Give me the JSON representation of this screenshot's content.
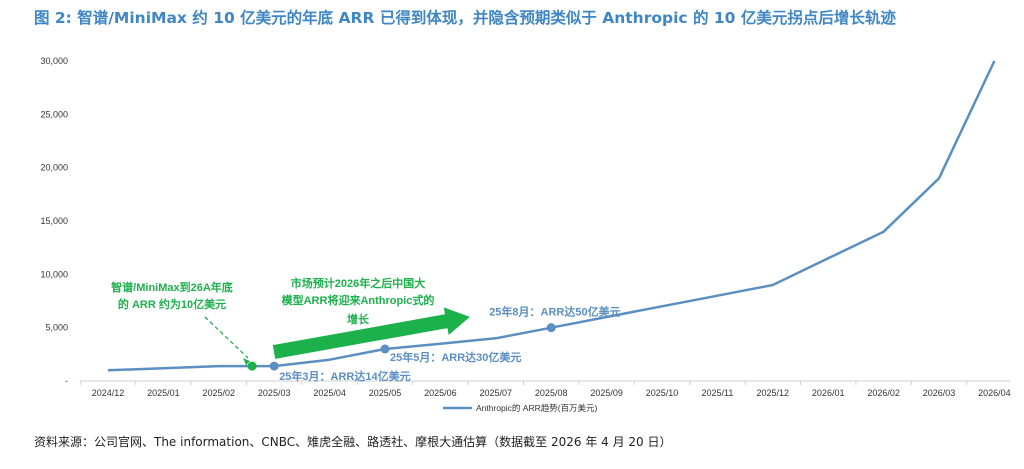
{
  "title": "图 2: 智谱/MiniMax 约 10 亿美元的年底 ARR 已得到体现，并隐含预期类似于 Anthropic 的 10 亿美元拐点后增长轨迹",
  "source": "资料来源：公司官网、The information、CNBC、雉虎全融、路透社、摩根大通估算（数据截至 2026 年 4 月 20 日）",
  "colors": {
    "line": "#5b8fc2",
    "accent_green": "#1db14b",
    "title": "#3f86c4"
  },
  "chart_data": {
    "type": "line",
    "categories": [
      "2024/12",
      "2025/01",
      "2025/02",
      "2025/03",
      "2025/04",
      "2025/05",
      "2025/06",
      "2025/07",
      "2025/08",
      "2025/09",
      "2025/10",
      "2025/11",
      "2025/12",
      "2026/01",
      "2026/02",
      "2026/03",
      "2026/04"
    ],
    "series": [
      {
        "name": "Anthropic的 ARR趋势(百万美元)",
        "values": [
          1000,
          1200,
          1400,
          1400,
          2000,
          3000,
          3500,
          4000,
          5000,
          6000,
          7000,
          8000,
          9000,
          11500,
          14000,
          19000,
          30000
        ]
      }
    ],
    "yticks": [
      "30,000",
      "25,000",
      "20,000",
      "15,000",
      "10,000",
      "5,000",
      "-"
    ],
    "ylim": [
      0,
      30000
    ],
    "grid": false,
    "legend": "bottom-center",
    "markers": [
      {
        "x": "2025/03",
        "y": 1400,
        "label": "25年3月：ARR达14亿美元"
      },
      {
        "x": "2025/05",
        "y": 3000,
        "label": "25年5月：ARR达30亿美元"
      },
      {
        "x": "2025/08",
        "y": 5000,
        "label": "25年8月：ARR达50亿美元"
      }
    ],
    "green_point": {
      "x": 2.6,
      "y": 1400
    },
    "annotations": {
      "green_note_line1": "智谱/MiniMax到26A年底",
      "green_note_line2": "的 ARR 约为10亿美元",
      "arrow_note_line1": "市场预计2026年之后中国大",
      "arrow_note_line2": "模型ARR将迎来Anthropic式的",
      "arrow_note_line3": "增长"
    }
  }
}
